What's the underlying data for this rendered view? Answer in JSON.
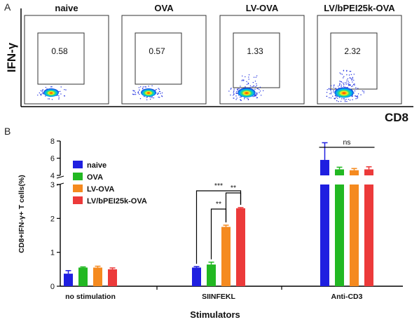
{
  "panel_a": {
    "label": "A",
    "y_axis_label": "IFN-γ",
    "x_axis_label": "CD8",
    "plots": [
      {
        "title": "naive",
        "percent": "0.58"
      },
      {
        "title": "OVA",
        "percent": "0.57"
      },
      {
        "title": "LV-OVA",
        "percent": "1.33"
      },
      {
        "title": "LV/bPEI25k-OVA",
        "percent": "2.32"
      }
    ]
  },
  "panel_b": {
    "label": "B"
  },
  "colors": {
    "naive": "#1f1fe0",
    "OVA": "#22b822",
    "LV-OVA": "#f58a1f",
    "LV/bPEI25k-OVA": "#ec3a3a"
  },
  "chart_data": {
    "type": "bar",
    "categories": [
      "no stimulation",
      "SIINFEKL",
      "Anti-CD3"
    ],
    "series": [
      {
        "name": "naive",
        "values": [
          0.37,
          0.55,
          5.8
        ],
        "errors": [
          0.09,
          0.03,
          2.0
        ]
      },
      {
        "name": "OVA",
        "values": [
          0.55,
          0.64,
          4.7
        ],
        "errors": [
          0.02,
          0.07,
          0.25
        ]
      },
      {
        "name": "LV-OVA",
        "values": [
          0.55,
          1.75,
          4.6
        ],
        "errors": [
          0.04,
          0.05,
          0.2
        ]
      },
      {
        "name": "LV/bPEI25k-OVA",
        "values": [
          0.5,
          2.3,
          4.7
        ],
        "errors": [
          0.04,
          0.02,
          0.3
        ]
      }
    ],
    "xlabel": "Stimulators",
    "ylabel": "CD8+IFN-γ+ T cells(%)",
    "ylim_lower": [
      0,
      3
    ],
    "ylim_upper": [
      4,
      8
    ],
    "yticks_lower": [
      "0",
      "1",
      "2",
      "3"
    ],
    "yticks_upper": [
      "4",
      "6",
      "8"
    ],
    "legend_position": "top-left",
    "annotations": [
      {
        "text": "***",
        "category": "SIINFEKL",
        "from": "naive",
        "to": "LV/bPEI25k-OVA"
      },
      {
        "text": "**",
        "category": "SIINFEKL",
        "from": "OVA",
        "to": "LV-OVA"
      },
      {
        "text": "**",
        "category": "SIINFEKL",
        "from": "LV-OVA",
        "to": "LV/bPEI25k-OVA"
      },
      {
        "text": "ns",
        "category": "Anti-CD3",
        "from": "naive",
        "to": "LV/bPEI25k-OVA"
      }
    ]
  }
}
